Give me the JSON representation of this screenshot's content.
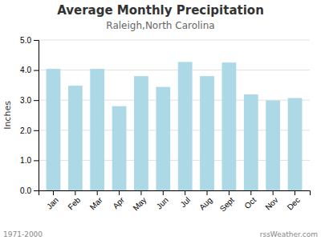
{
  "chart_data": {
    "type": "bar",
    "title": "Average Monthly Precipitation",
    "subtitle": "Raleigh,North Carolina",
    "ylabel": "Inches",
    "categories": [
      "Jan",
      "Feb",
      "Mar",
      "Apr",
      "May",
      "Jun",
      "Jul",
      "Aug",
      "Sept",
      "Oct",
      "Nov",
      "Dec"
    ],
    "values": [
      4.04,
      3.48,
      4.04,
      2.8,
      3.8,
      3.44,
      4.27,
      3.8,
      4.25,
      3.19,
      2.99,
      3.07
    ],
    "color": "#ADD8E6",
    "ylim": [
      0.0,
      5.0
    ],
    "yticks": [
      {
        "value": 0.0,
        "label": "0.0"
      },
      {
        "value": 1.0,
        "label": "1.0"
      },
      {
        "value": 2.0,
        "label": "2.0"
      },
      {
        "value": 3.0,
        "label": "3.0"
      },
      {
        "value": 4.0,
        "label": "4.0"
      },
      {
        "value": 5.0,
        "label": "5.0"
      }
    ],
    "grid": true,
    "annotations": [
      "1971-2000",
      "rssWeather.com"
    ]
  }
}
